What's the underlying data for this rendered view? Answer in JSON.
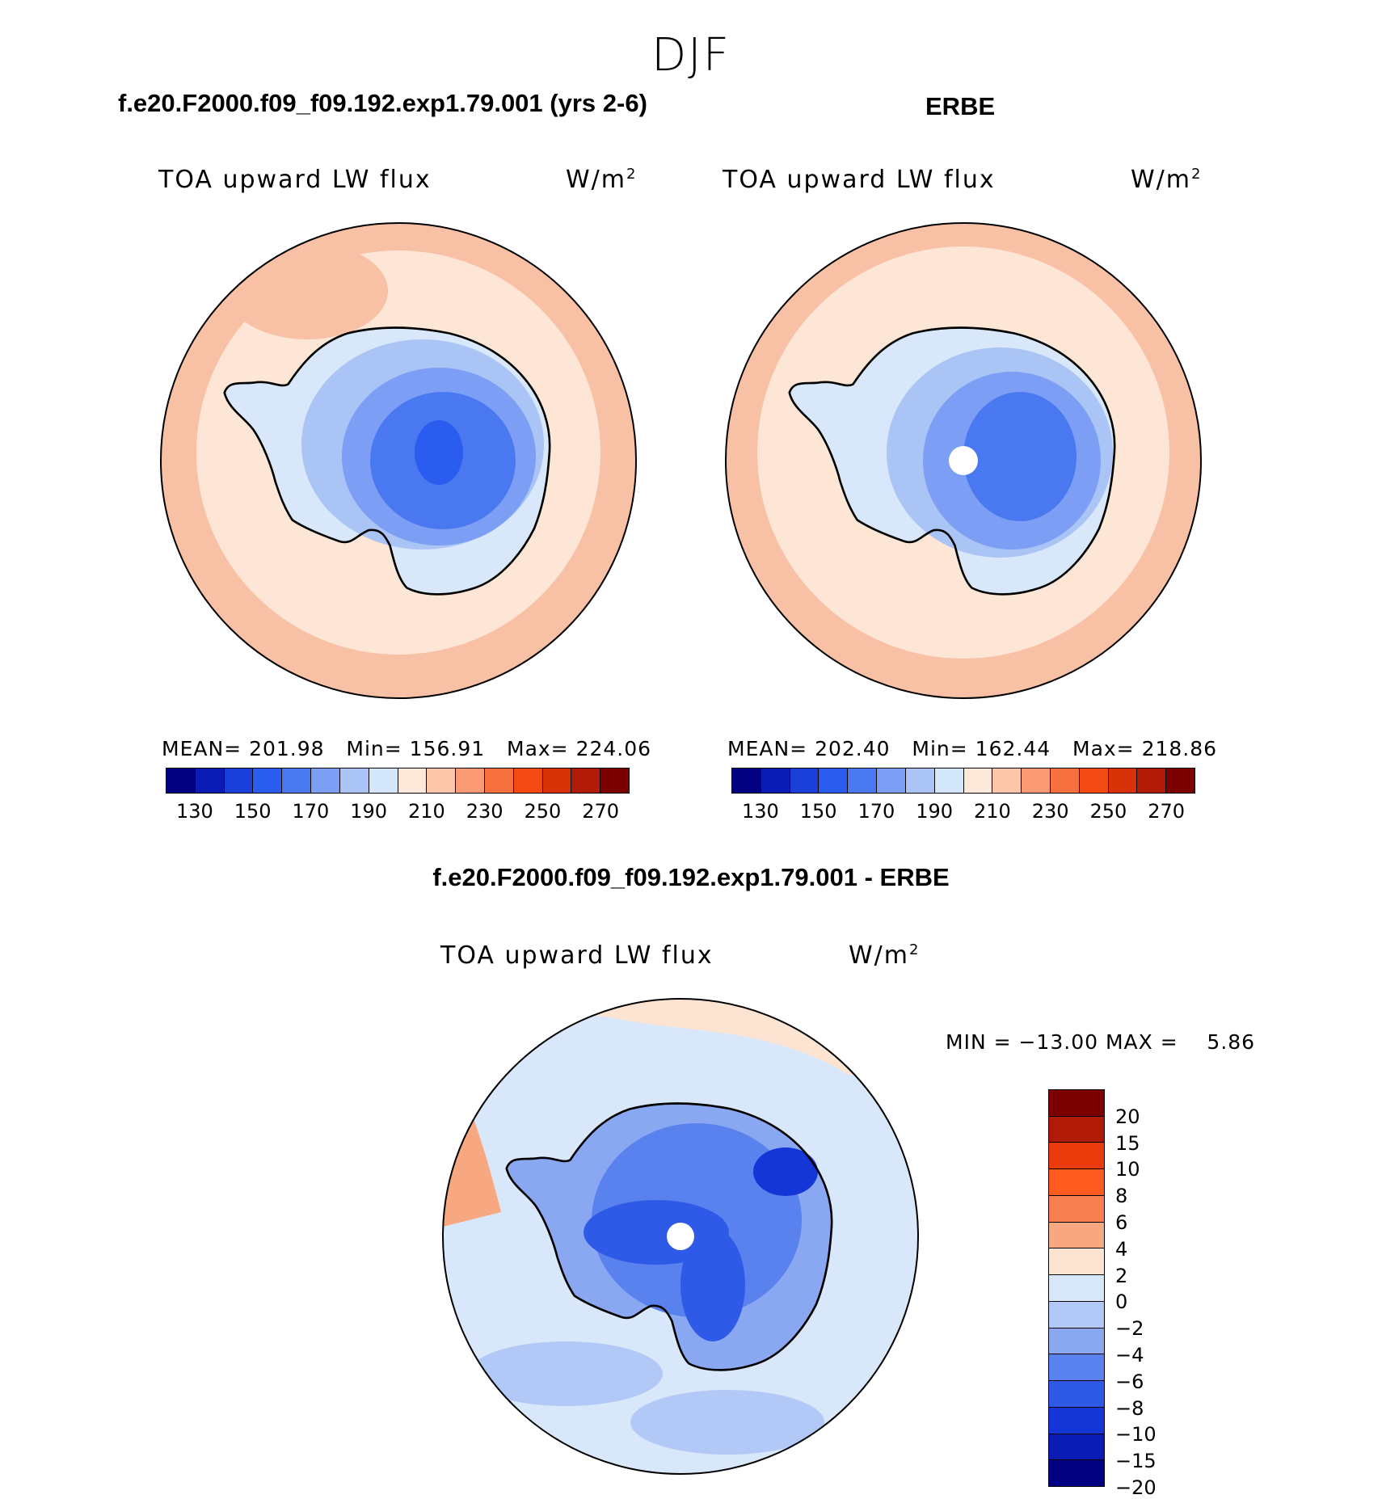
{
  "season": "DJF",
  "panels": {
    "model": {
      "title": "f.e20.F2000.f09_f09.192.exp1.79.001 (yrs 2-6)",
      "variable": "TOA upward LW flux",
      "unit_base": "W/m",
      "unit_exp": "2",
      "mean_label": "MEAN=",
      "mean": "201.98",
      "min_label": "Min=",
      "min": "156.91",
      "max_label": "Max=",
      "max": "224.06"
    },
    "obs": {
      "title": "ERBE",
      "variable": "TOA upward LW flux",
      "unit_base": "W/m",
      "unit_exp": "2",
      "mean_label": "MEAN=",
      "mean": "202.40",
      "min_label": "Min=",
      "min": "162.44",
      "max_label": "Max=",
      "max": "218.86"
    },
    "diff": {
      "title": "f.e20.F2000.f09_f09.192.exp1.79.001 - ERBE",
      "variable": "TOA upward LW flux",
      "unit_base": "W/m",
      "unit_exp": "2",
      "minmax": "MIN = −13.00 MAX =    5.86"
    }
  },
  "colorbar_abs": {
    "colors": [
      "#000080",
      "#0a1cb4",
      "#1a3fd8",
      "#2a5cf0",
      "#4a78f0",
      "#7c9ef4",
      "#aac4f6",
      "#d4e6fa",
      "#fde8da",
      "#fbc6aa",
      "#f99a74",
      "#f77040",
      "#f44a14",
      "#d83208",
      "#b01a06",
      "#7c0000"
    ],
    "tick_labels": [
      "130",
      "150",
      "170",
      "190",
      "210",
      "230",
      "250",
      "270"
    ]
  },
  "colorbar_diff": {
    "colors": [
      "#7c0000",
      "#b01a06",
      "#e83a0a",
      "#ff5a20",
      "#f88050",
      "#f8a880",
      "#fde4d2",
      "#d8e8fa",
      "#b2c8f6",
      "#8aa8f2",
      "#5a82ee",
      "#2f5ae8",
      "#1536d6",
      "#0a1cb4",
      "#000080"
    ],
    "tick_labels": [
      "20",
      "15",
      "10",
      "8",
      "6",
      "4",
      "2",
      "0",
      "−2",
      "−4",
      "−6",
      "−8",
      "−10",
      "−15",
      "−20"
    ]
  }
}
